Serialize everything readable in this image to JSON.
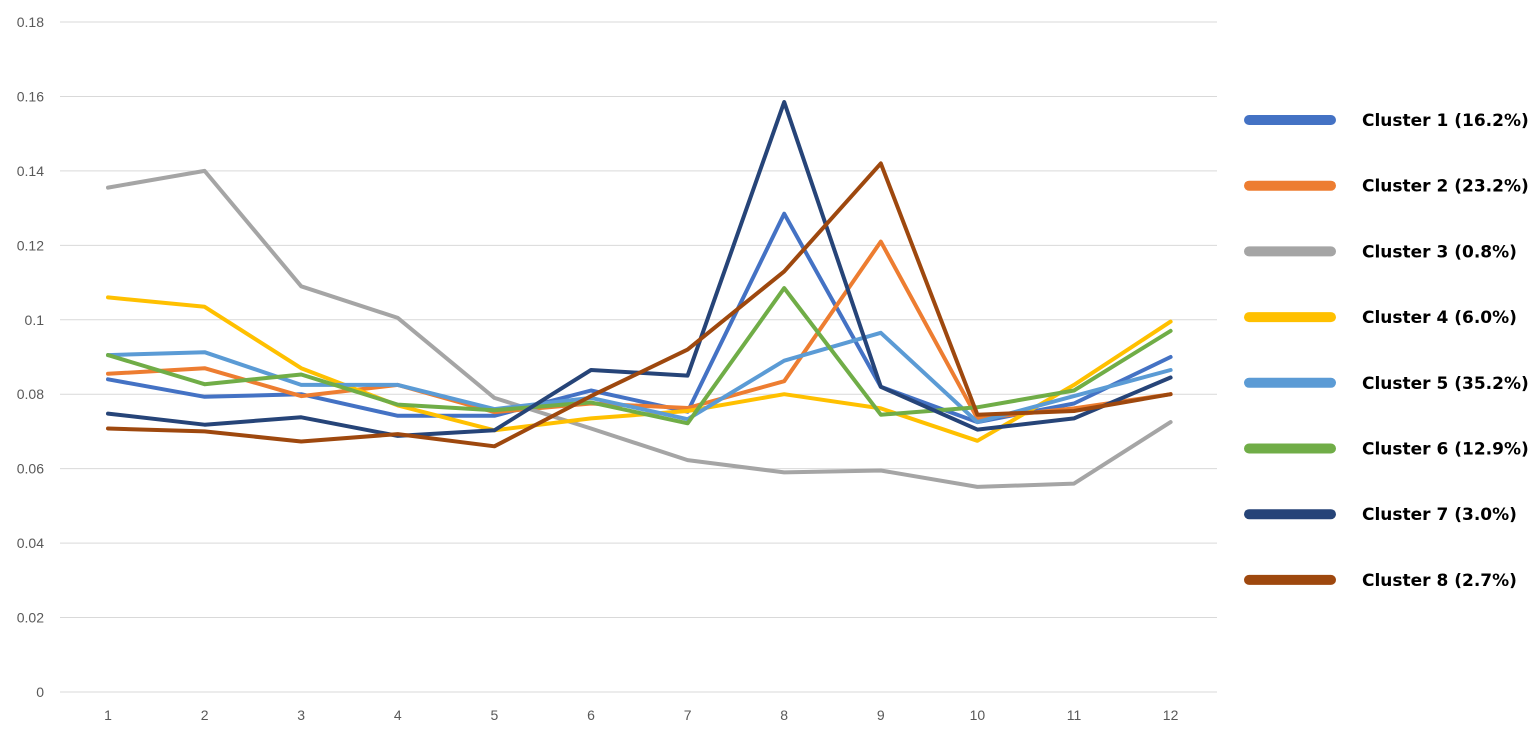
{
  "chart_data": {
    "type": "line",
    "title": "",
    "xlabel": "",
    "ylabel": "",
    "x": [
      1,
      2,
      3,
      4,
      5,
      6,
      7,
      8,
      9,
      10,
      11,
      12
    ],
    "x_tick_labels": [
      "1",
      "2",
      "3",
      "4",
      "5",
      "6",
      "7",
      "8",
      "9",
      "10",
      "11",
      "12"
    ],
    "ylim": [
      0,
      0.18
    ],
    "y_ticks": [
      0,
      0.02,
      0.04,
      0.06,
      0.08,
      0.1,
      0.12,
      0.14,
      0.16,
      0.18
    ],
    "y_tick_labels": [
      "0",
      "0.02",
      "0.04",
      "0.06",
      "0.08",
      "0.1",
      "0.12",
      "0.14",
      "0.16",
      "0.18"
    ],
    "grid": "horizontal",
    "legend_position": "right",
    "series": [
      {
        "name": "Cluster 1 (16.2%)",
        "color": "#4472C4",
        "values": [
          0.084,
          0.0793,
          0.08,
          0.0742,
          0.0742,
          0.081,
          0.0753,
          0.1285,
          0.082,
          0.0725,
          0.0775,
          0.09
        ]
      },
      {
        "name": "Cluster 2 (23.2%)",
        "color": "#ED7D31",
        "values": [
          0.0855,
          0.087,
          0.0795,
          0.0825,
          0.0752,
          0.0775,
          0.0763,
          0.0835,
          0.121,
          0.0735,
          0.0762,
          0.08
        ]
      },
      {
        "name": "Cluster 3 (0.8%)",
        "color": "#A5A5A5",
        "values": [
          0.1355,
          0.14,
          0.109,
          0.1005,
          0.079,
          0.0708,
          0.0623,
          0.059,
          0.0595,
          0.0551,
          0.056,
          0.0725
        ]
      },
      {
        "name": "Cluster 4 (6.0%)",
        "color": "#FFC000",
        "values": [
          0.106,
          0.1035,
          0.087,
          0.077,
          0.0703,
          0.0735,
          0.0755,
          0.08,
          0.0762,
          0.0675,
          0.0825,
          0.0995
        ]
      },
      {
        "name": "Cluster 5 (35.2%)",
        "color": "#5B9BD5",
        "values": [
          0.0905,
          0.0913,
          0.0825,
          0.0825,
          0.076,
          0.079,
          0.0733,
          0.089,
          0.0965,
          0.0725,
          0.0795,
          0.0865
        ]
      },
      {
        "name": "Cluster 6 (12.9%)",
        "color": "#70AD47",
        "values": [
          0.0905,
          0.0827,
          0.0853,
          0.0772,
          0.0757,
          0.0778,
          0.0722,
          0.1085,
          0.0745,
          0.0765,
          0.081,
          0.097
        ]
      },
      {
        "name": "Cluster 7 (3.0%)",
        "color": "#264478",
        "values": [
          0.0748,
          0.0718,
          0.0738,
          0.0688,
          0.0703,
          0.0865,
          0.085,
          0.1585,
          0.082,
          0.0705,
          0.0735,
          0.0845
        ]
      },
      {
        "name": "Cluster 8 (2.7%)",
        "color": "#9E480E",
        "values": [
          0.0708,
          0.07,
          0.0673,
          0.0693,
          0.066,
          0.0795,
          0.092,
          0.113,
          0.142,
          0.0745,
          0.0755,
          0.08
        ]
      }
    ]
  }
}
